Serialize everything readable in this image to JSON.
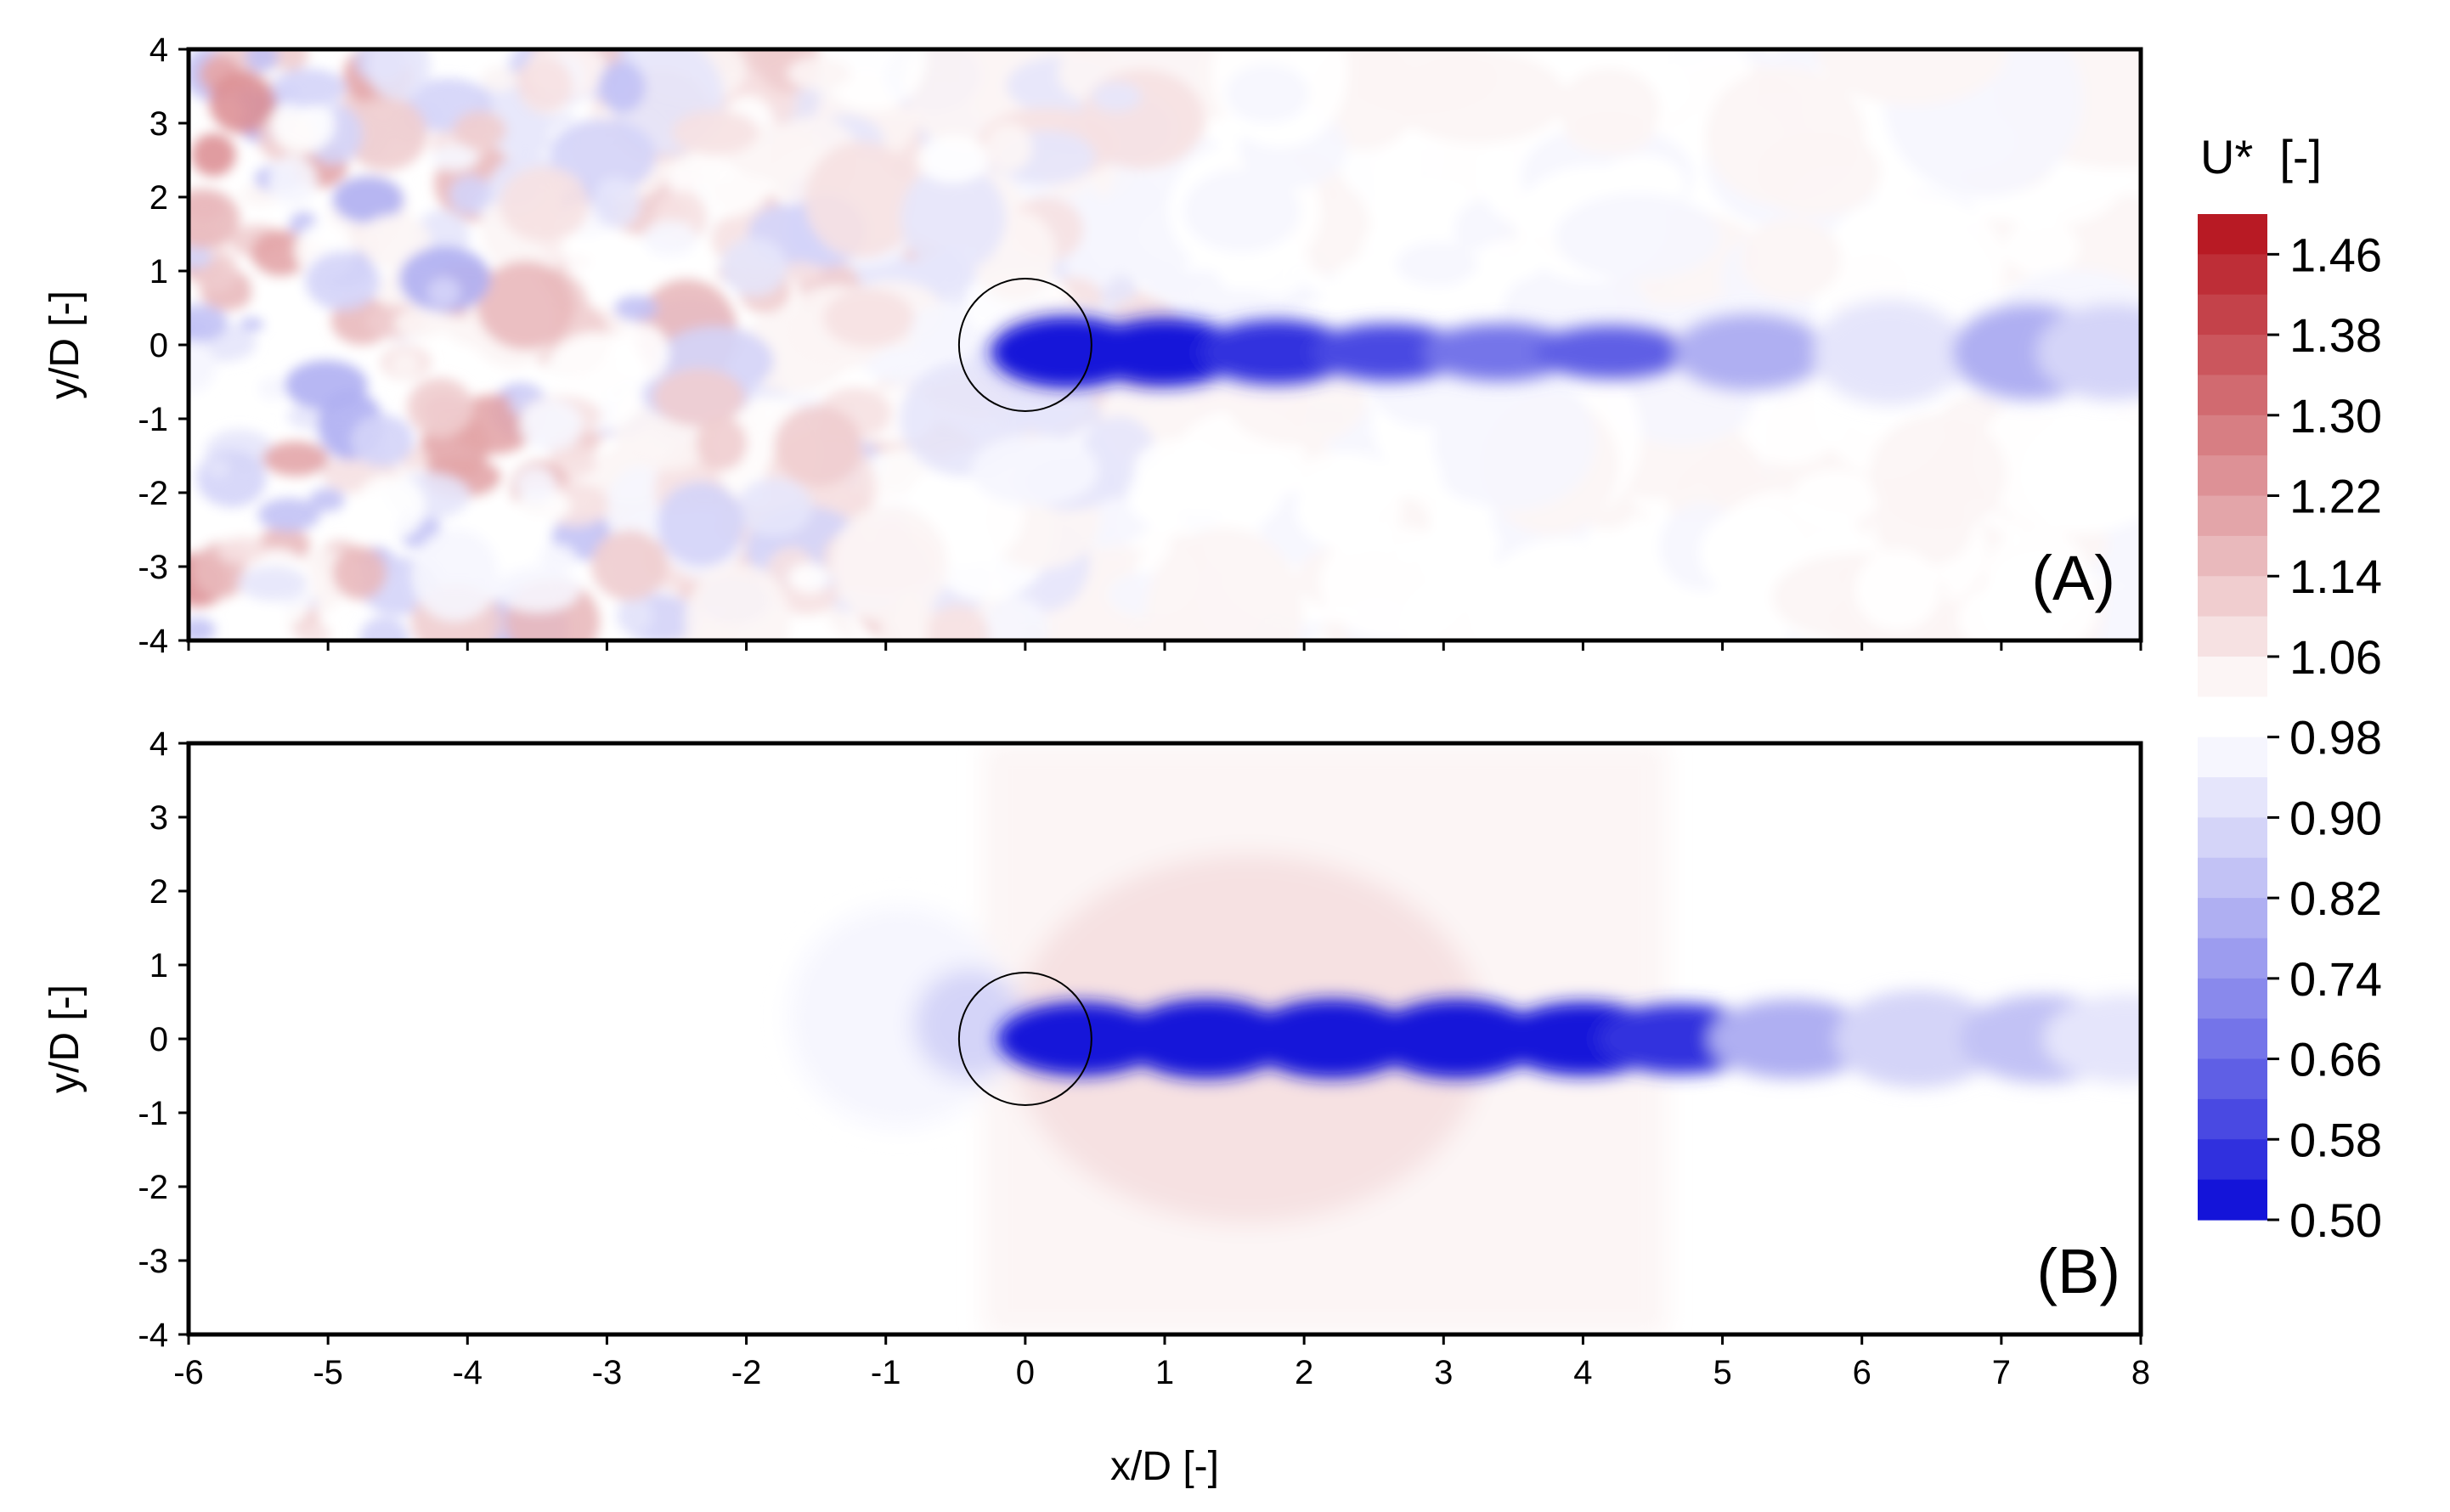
{
  "chart_data": [
    {
      "type": "heatmap",
      "panel_label": "(A)",
      "ylabel": "y/D [-]",
      "xlabel": "",
      "xlim": [
        -6,
        8
      ],
      "ylim": [
        -4,
        4
      ],
      "x_ticks": [
        -6,
        -5,
        -4,
        -3,
        -2,
        -1,
        0,
        1,
        2,
        3,
        4,
        5,
        6,
        7,
        8
      ],
      "x_tick_labels_shown": false,
      "y_ticks": [
        -4,
        -3,
        -2,
        -1,
        0,
        1,
        2,
        3,
        4
      ],
      "field": "U*",
      "description_values": {
        "turbulent_inflow": true,
        "upstream_fluctuation_range": [
          0.82,
          1.22
        ],
        "wake_center_minimum": 0.5,
        "wake_x_extent": [
          0,
          8
        ],
        "cylinder_center": [
          0,
          0
        ]
      }
    },
    {
      "type": "heatmap",
      "panel_label": "(B)",
      "ylabel": "y/D [-]",
      "xlabel": "x/D [-]",
      "xlim": [
        -6,
        8
      ],
      "ylim": [
        -4,
        4
      ],
      "x_ticks": [
        -6,
        -5,
        -4,
        -3,
        -2,
        -1,
        0,
        1,
        2,
        3,
        4,
        5,
        6,
        7,
        8
      ],
      "y_ticks": [
        -4,
        -3,
        -2,
        -1,
        0,
        1,
        2,
        3,
        4
      ],
      "field": "U*",
      "description_values": {
        "turbulent_inflow": false,
        "freestream_value": 0.98,
        "wake_center_minimum": 0.5,
        "wake_x_extent": [
          0,
          8
        ],
        "cylinder_center": [
          0,
          0
        ]
      }
    }
  ],
  "colorbar": {
    "title": "U*  [-]",
    "labels": [
      "1.46",
      "1.38",
      "1.30",
      "1.22",
      "1.14",
      "1.06",
      "0.98",
      "0.90",
      "0.82",
      "0.74",
      "0.66",
      "0.58",
      "0.50"
    ],
    "min": 0.5,
    "max": 1.5,
    "levels": 25,
    "colors": {
      "high": "#b5101a",
      "neutral": "#ffffff",
      "low": "#0000d6"
    }
  }
}
